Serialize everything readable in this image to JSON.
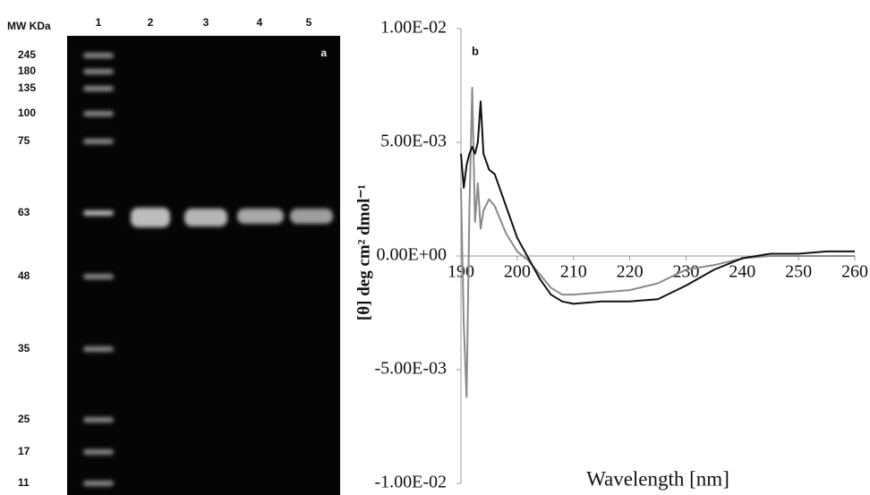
{
  "gel": {
    "panel_label": "a",
    "header": "MW KDa",
    "lanes": [
      "1",
      "2",
      "3",
      "4",
      "5"
    ],
    "markers": [
      "245",
      "180",
      "135",
      "100",
      "75",
      "63",
      "48",
      "35",
      "25",
      "17",
      "11"
    ]
  },
  "chart_data": {
    "type": "line",
    "panel_label": "b",
    "x_label": "Wavelength [nm]",
    "y_label": "[θ] deg cm² dmol⁻¹",
    "x": [
      190,
      190.5,
      191,
      191.5,
      192,
      192.5,
      193,
      193.5,
      194,
      195,
      196,
      198,
      200,
      202,
      204,
      206,
      208,
      210,
      215,
      220,
      225,
      230,
      235,
      240,
      245,
      250,
      255,
      260
    ],
    "series": [
      {
        "color": "#111111",
        "values": [
          0.0045,
          0.003,
          0.004,
          0.0045,
          0.0048,
          0.0045,
          0.005,
          0.0068,
          0.0045,
          0.0038,
          0.0036,
          0.0022,
          0.0008,
          -0.0001,
          -0.001,
          -0.0017,
          -0.002,
          -0.0021,
          -0.002,
          -0.002,
          -0.0019,
          -0.0013,
          -0.0006,
          -0.0001,
          0.0001,
          0.0001,
          0.0002,
          0.0002
        ]
      },
      {
        "color": "#8a8a8a",
        "values": [
          0.003,
          -0.003,
          -0.0062,
          0.002,
          0.0074,
          0.0015,
          0.0032,
          0.0012,
          0.002,
          0.0025,
          0.0022,
          0.001,
          0.0002,
          -0.0002,
          -0.0008,
          -0.0014,
          -0.0017,
          -0.0017,
          -0.0016,
          -0.0015,
          -0.0012,
          -0.0006,
          -0.0004,
          -0.0001,
          0,
          0,
          0,
          0
        ]
      }
    ],
    "xlim": [
      190,
      260
    ],
    "xticks": [
      190,
      200,
      210,
      220,
      230,
      240,
      250,
      260
    ],
    "ylim": [
      -0.01,
      0.01
    ],
    "yticks": [
      {
        "value": 0.01,
        "label": "1.00E-02"
      },
      {
        "value": 0.005,
        "label": "5.00E-03"
      },
      {
        "value": 0,
        "label": "0.00E+00"
      },
      {
        "value": -0.005,
        "label": "-5.00E-03"
      },
      {
        "value": -0.01,
        "label": "-1.00E-02"
      }
    ]
  }
}
